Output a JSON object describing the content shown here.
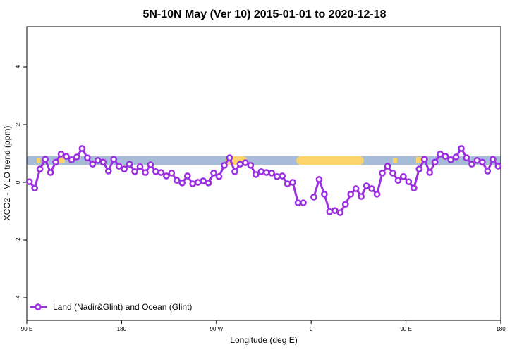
{
  "chart_data": {
    "type": "line",
    "title": "5N-10N May (Ver 10)   2015-01-01 to 2020-12-18",
    "xlabel": "Longitude (deg E)",
    "ylabel": "XCO2 - MLO trend (ppm)",
    "x": [
      92.5,
      97.5,
      102.5,
      107.5,
      112.5,
      117.5,
      122.5,
      127.5,
      132.5,
      137.5,
      142.5,
      147.5,
      152.5,
      157.5,
      162.5,
      167.5,
      172.5,
      177.5,
      182.5,
      187.5,
      192.5,
      197.5,
      202.5,
      207.5,
      212.5,
      217.5,
      222.5,
      227.5,
      232.5,
      237.5,
      242.5,
      247.5,
      252.5,
      257.5,
      262.5,
      267.5,
      272.5,
      277.5,
      282.5,
      287.5,
      292.5,
      297.5,
      302.5,
      307.5,
      312.5,
      317.5,
      322.5,
      327.5,
      332.5,
      337.5,
      342.5,
      347.5,
      352.5,
      357.5,
      362.5,
      367.5,
      372.5,
      377.5,
      382.5,
      387.5,
      392.5,
      397.5,
      402.5,
      407.5,
      412.5,
      417.5,
      422.5,
      427.5,
      432.5,
      437.5,
      442.5,
      447.5,
      452.5,
      457.5,
      462.5,
      467.5,
      472.5,
      477.5,
      482.5,
      487.5,
      492.5,
      497.5,
      502.5,
      507.5,
      512.5,
      517.5,
      522.5,
      527.5,
      532.5,
      537.5
    ],
    "series": [
      {
        "name": "Land (Nadir&Glint) and Ocean (Glint)",
        "color": "#9b30e0",
        "values": [
          0.02,
          -0.2,
          0.46,
          0.8,
          0.34,
          0.7,
          0.98,
          0.9,
          0.78,
          0.88,
          1.17,
          0.85,
          0.63,
          0.76,
          0.7,
          0.39,
          0.8,
          0.56,
          0.46,
          0.63,
          0.37,
          0.54,
          0.34,
          0.61,
          0.37,
          0.34,
          0.22,
          0.32,
          0.07,
          -0.02,
          0.22,
          -0.05,
          0.0,
          0.05,
          -0.02,
          0.32,
          0.2,
          0.59,
          0.85,
          0.37,
          0.63,
          0.68,
          0.59,
          0.27,
          0.37,
          0.34,
          0.32,
          0.2,
          0.22,
          -0.05,
          0.0,
          -0.71,
          -0.71,
          null,
          -0.51,
          0.1,
          -0.41,
          -1.02,
          -0.98,
          -1.05,
          -0.76,
          -0.41,
          -0.22,
          -0.49,
          -0.12,
          -0.22,
          -0.41,
          0.32,
          0.56,
          0.32,
          0.07,
          0.2,
          0.02,
          -0.2,
          0.46,
          0.8,
          0.34,
          0.7,
          0.98,
          0.9,
          0.78,
          0.88,
          1.17,
          0.85,
          0.63,
          0.76,
          0.7,
          0.39,
          0.8,
          0.56
        ]
      }
    ],
    "xlim": [
      90,
      540
    ],
    "xticks": [
      {
        "value": 90,
        "label": "90 E"
      },
      180,
      {
        "value": 270,
        "label": "90 W"
      },
      {
        "value": 360,
        "label": "0"
      },
      {
        "value": 450,
        "label": "90 E"
      },
      {
        "value": 540,
        "label": "180"
      }
    ],
    "ylim": [
      -4.78,
      5.39
    ],
    "yticks": [
      -4,
      -2,
      0,
      2,
      4
    ],
    "legend": "bottom-left"
  }
}
